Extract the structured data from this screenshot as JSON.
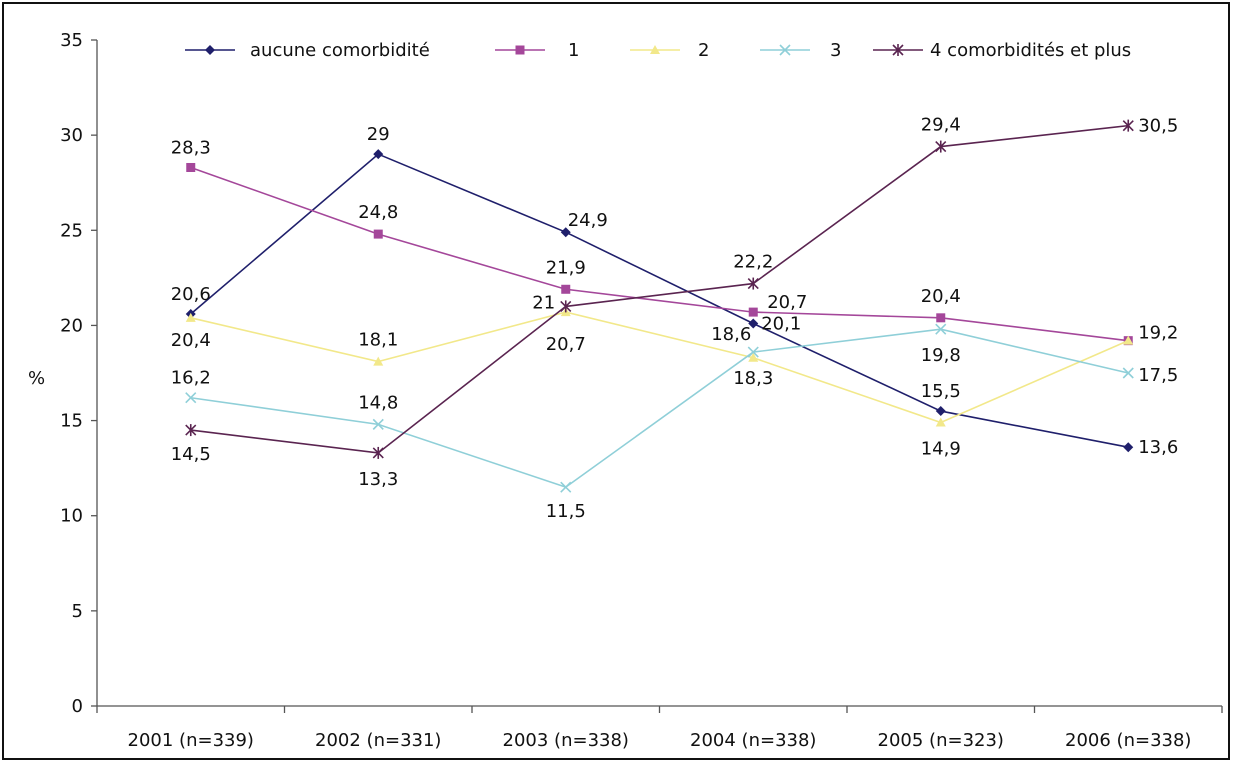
{
  "chart_data": {
    "type": "line",
    "title": "",
    "xlabel": "",
    "ylabel": "%",
    "ylim": [
      0,
      35
    ],
    "yticks": [
      "0",
      "5",
      "10",
      "15",
      "20",
      "25",
      "30",
      "35"
    ],
    "categories": [
      "2001 (n=339)",
      "2002 (n=331)",
      "2003 (n=338)",
      "2004 (n=338)",
      "2005 (n=323)",
      "2006 (n=338)"
    ],
    "grid": false,
    "legend_position": "top",
    "series": [
      {
        "name": "aucune comorbidité",
        "color": "#1f1f6b",
        "marker": "diamond",
        "values": [
          20.6,
          29,
          24.9,
          20.1,
          15.5,
          13.6
        ],
        "labels": [
          "20,6",
          "29",
          "24,9",
          "20,1",
          "15,5",
          "13,6"
        ]
      },
      {
        "name": "1",
        "color": "#a4479a",
        "marker": "square",
        "values": [
          28.3,
          24.8,
          21.9,
          20.7,
          20.4,
          19.2
        ],
        "labels": [
          "28,3",
          "24,8",
          "21,9",
          "20,7",
          "20,4",
          "19,2"
        ]
      },
      {
        "name": "2",
        "color": "#f2e88a",
        "marker": "triangle",
        "values": [
          20.4,
          18.1,
          20.7,
          18.3,
          14.9,
          19.2
        ],
        "labels": [
          "20,4",
          "18,1",
          "20,7",
          "18,3",
          "14,9",
          ""
        ]
      },
      {
        "name": "3",
        "color": "#8fcfd8",
        "marker": "x",
        "values": [
          16.2,
          14.8,
          11.5,
          18.6,
          19.8,
          17.5
        ],
        "labels": [
          "16,2",
          "14,8",
          "11,5",
          "18,6",
          "19,8",
          "17,5"
        ]
      },
      {
        "name": "4 comorbidités et plus",
        "color": "#5a2450",
        "marker": "star",
        "values": [
          14.5,
          13.3,
          21,
          22.2,
          29.4,
          30.5
        ],
        "labels": [
          "14,5",
          "13,3",
          "21",
          "22,2",
          "29,4",
          "30,5"
        ]
      }
    ]
  }
}
